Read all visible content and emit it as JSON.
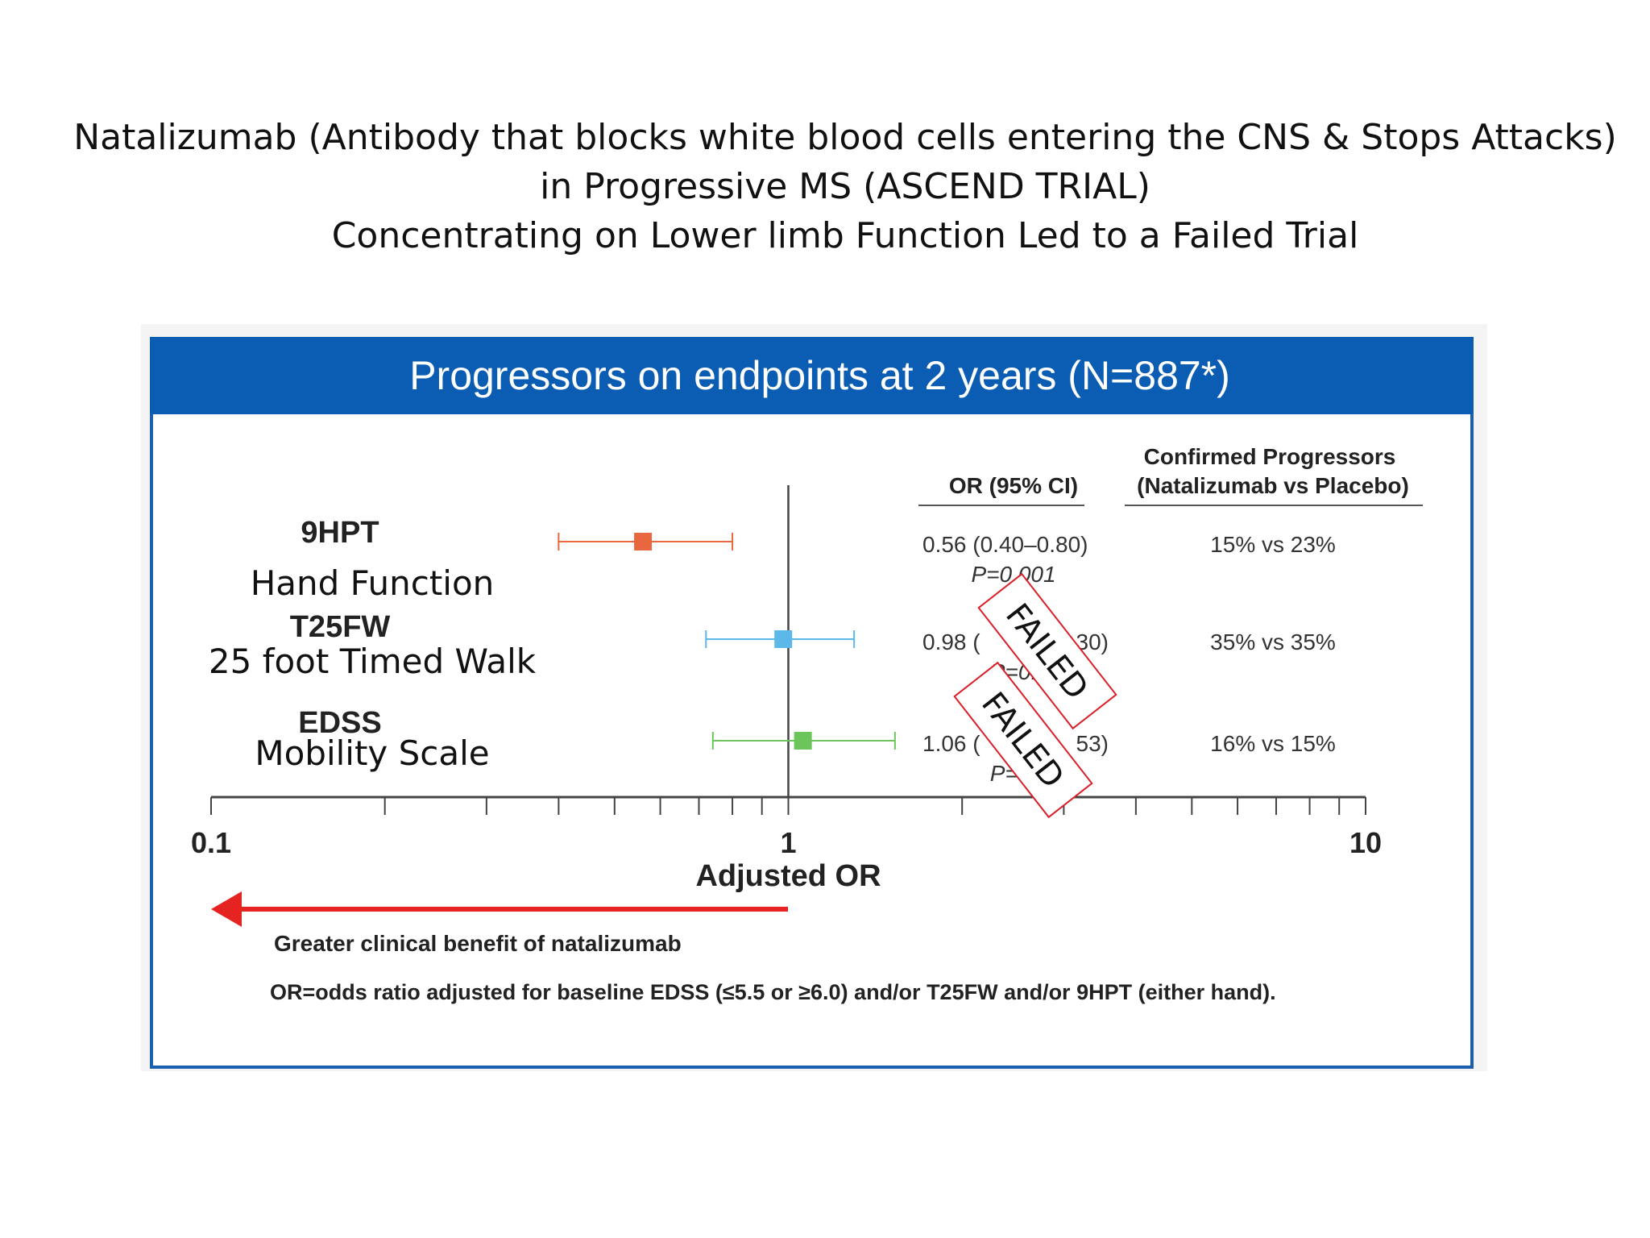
{
  "slide": {
    "title_lines": [
      "Natalizumab (Antibody that blocks white blood cells entering the CNS & Stops Attacks)",
      "in Progressive MS (ASCEND TRIAL)",
      "Concentrating on Lower limb Function Led to a Failed Trial"
    ]
  },
  "panel": {
    "header": "Progressors on endpoints at 2 years (N=887*)",
    "or_header": "OR (95% CI)",
    "progressors_header_line1": "Confirmed Progressors",
    "progressors_header_line2": "(Natalizumab vs Placebo)",
    "benefit_label": "Greater clinical benefit of natalizumab",
    "footnote": "OR=odds ratio adjusted for baseline EDSS (≤5.5 or ≥6.0) and/or T25FW and/or  9HPT (either hand).",
    "stamp_text": "FAILED"
  },
  "chart_data": {
    "type": "forest",
    "xlabel": "Adjusted OR",
    "xscale": "log",
    "xlim": [
      0.1,
      10
    ],
    "x_tick_labels": [
      "0.1",
      "1",
      "10"
    ],
    "reference_line": 1,
    "rows": [
      {
        "label": "9HPT",
        "annotation": "Hand Function",
        "or": 0.56,
        "ci": [
          0.4,
          0.8
        ],
        "or_text": "0.56 (0.40–0.80)",
        "p_text": "P=0.001",
        "progressors": "15% vs 23%",
        "color": "#e8673f",
        "stamped": false
      },
      {
        "label": "T25FW",
        "annotation": "25 foot Timed Walk",
        "or": 0.98,
        "ci": [
          0.72,
          1.3
        ],
        "or_text": "0.98 (",
        "or_text_end": "30)",
        "p_text": "P=0.",
        "progressors": "35% vs 35%",
        "color": "#5bb8e8",
        "stamped": true
      },
      {
        "label": "EDSS",
        "annotation": "Mobility Scale",
        "or": 1.06,
        "ci": [
          0.74,
          1.53
        ],
        "or_text": "1.06 (",
        "or_text_end": "53)",
        "p_text": "P=0.",
        "progressors": "16% vs 15%",
        "color": "#6cc55a",
        "stamped": true
      }
    ]
  }
}
